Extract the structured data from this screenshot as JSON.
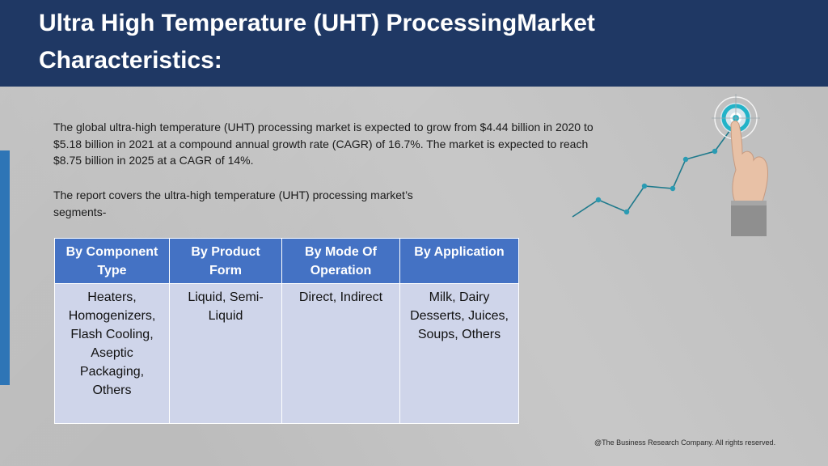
{
  "header": {
    "title_line1": "Ultra High Temperature (UHT) ProcessingMarket",
    "title_line2": "Characteristics:"
  },
  "body": {
    "paragraph1": "The global ultra-high temperature (UHT) processing market is expected to grow from $4.44 billion in 2020 to $5.18 billion in 2021 at a compound annual growth rate (CAGR) of 16.7%. The market is expected to reach $8.75 billion in 2025 at a CAGR of 14%.",
    "paragraph2": "The report covers the ultra-high temperature (UHT) processing market’s segments-"
  },
  "segments_table": {
    "headers": [
      "By Component Type",
      "By Product Form",
      "By Mode Of Operation",
      "By Application"
    ],
    "cells": [
      "Heaters, Homogenizers, Flash Cooling, Aseptic Packaging, Others",
      "Liquid, Semi-Liquid",
      "Direct, Indirect",
      "Milk, Dairy Desserts, Juices, Soups, Others"
    ]
  },
  "illustration": {
    "icon": "growth-chart-target-hand-icon",
    "accent": "#2a9bb3"
  },
  "colors": {
    "header_bg": "#1f3864",
    "table_header_bg": "#4472c4",
    "table_cell_bg": "#cfd5ea",
    "accent_bar": "#2e75b6"
  },
  "footer": {
    "copyright": "@The Business Research Company. All rights reserved."
  }
}
